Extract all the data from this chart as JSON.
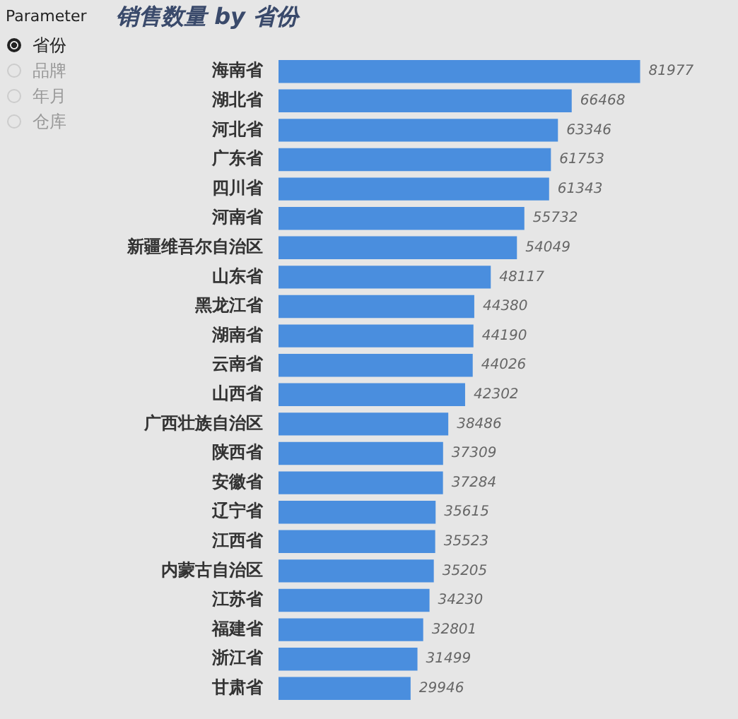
{
  "chart_data": [
    {
      "type": "other",
      "title": "Parameter",
      "categories": [
        "省份",
        "品牌",
        "年月",
        "仓库"
      ]
    },
    {
      "type": "bar",
      "orientation": "horizontal",
      "title": "销售数量 by 省份",
      "categories": [
        "海南省",
        "湖北省",
        "河北省",
        "广东省",
        "四川省",
        "河南省",
        "新疆维吾尔自治区",
        "山东省",
        "黑龙江省",
        "湖南省",
        "云南省",
        "山西省",
        "广西壮族自治区",
        "陕西省",
        "安徽省",
        "辽宁省",
        "江西省",
        "内蒙古自治区",
        "江苏省",
        "福建省",
        "浙江省",
        "甘肃省"
      ],
      "values": [
        81977,
        66468,
        63346,
        61753,
        61343,
        55732,
        54049,
        48117,
        44380,
        44190,
        44026,
        42302,
        38486,
        37309,
        37284,
        35615,
        35523,
        35205,
        34230,
        32801,
        31499,
        29946
      ],
      "color": "#4a8ede",
      "data_labels": true,
      "tick_labels": "y"
    }
  ]
}
